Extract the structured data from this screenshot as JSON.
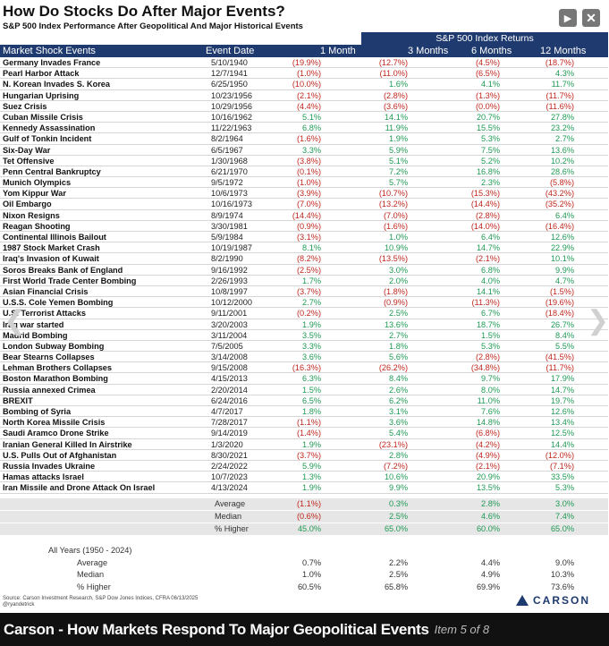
{
  "document": {
    "title": "How Do Stocks Do After Major Events?",
    "subtitle": "S&P 500 Index Performance After Geopolitical And Major Historical Events",
    "group_header": "S&P 500 Index Returns",
    "columns": {
      "event": "Market Shock Events",
      "date": "Event Date",
      "m1": "1 Month",
      "m3": "3 Months",
      "m6": "6 Months",
      "m12": "12 Months"
    },
    "rows": [
      {
        "event": "Germany Invades France",
        "date": "5/10/1940",
        "m1": "(19.9%)",
        "m3": "(12.7%)",
        "m6": "(4.5%)",
        "m12": "(18.7%)"
      },
      {
        "event": "Pearl Harbor Attack",
        "date": "12/7/1941",
        "m1": "(1.0%)",
        "m3": "(11.0%)",
        "m6": "(6.5%)",
        "m12": "4.3%"
      },
      {
        "event": "N. Korean Invades S. Korea",
        "date": "6/25/1950",
        "m1": "(10.0%)",
        "m3": "1.6%",
        "m6": "4.1%",
        "m12": "11.7%"
      },
      {
        "event": "Hungarian Uprising",
        "date": "10/23/1956",
        "m1": "(2.1%)",
        "m3": "(2.8%)",
        "m6": "(1.3%)",
        "m12": "(11.7%)"
      },
      {
        "event": "Suez Crisis",
        "date": "10/29/1956",
        "m1": "(4.4%)",
        "m3": "(3.6%)",
        "m6": "(0.0%)",
        "m12": "(11.6%)"
      },
      {
        "event": "Cuban Missile Crisis",
        "date": "10/16/1962",
        "m1": "5.1%",
        "m3": "14.1%",
        "m6": "20.7%",
        "m12": "27.8%"
      },
      {
        "event": "Kennedy Assassination",
        "date": "11/22/1963",
        "m1": "6.8%",
        "m3": "11.9%",
        "m6": "15.5%",
        "m12": "23.2%"
      },
      {
        "event": "Gulf of Tonkin Incident",
        "date": "8/2/1964",
        "m1": "(1.6%)",
        "m3": "1.9%",
        "m6": "5.3%",
        "m12": "2.7%"
      },
      {
        "event": "Six-Day War",
        "date": "6/5/1967",
        "m1": "3.3%",
        "m3": "5.9%",
        "m6": "7.5%",
        "m12": "13.6%"
      },
      {
        "event": "Tet Offensive",
        "date": "1/30/1968",
        "m1": "(3.8%)",
        "m3": "5.1%",
        "m6": "5.2%",
        "m12": "10.2%"
      },
      {
        "event": "Penn Central Bankruptcy",
        "date": "6/21/1970",
        "m1": "(0.1%)",
        "m3": "7.2%",
        "m6": "16.8%",
        "m12": "28.6%"
      },
      {
        "event": "Munich Olympics",
        "date": "9/5/1972",
        "m1": "(1.0%)",
        "m3": "5.7%",
        "m6": "2.3%",
        "m12": "(5.8%)"
      },
      {
        "event": "Yom Kippur War",
        "date": "10/6/1973",
        "m1": "(3.9%)",
        "m3": "(10.7%)",
        "m6": "(15.3%)",
        "m12": "(43.2%)"
      },
      {
        "event": "Oil Embargo",
        "date": "10/16/1973",
        "m1": "(7.0%)",
        "m3": "(13.2%)",
        "m6": "(14.4%)",
        "m12": "(35.2%)"
      },
      {
        "event": "Nixon Resigns",
        "date": "8/9/1974",
        "m1": "(14.4%)",
        "m3": "(7.0%)",
        "m6": "(2.8%)",
        "m12": "6.4%"
      },
      {
        "event": "Reagan Shooting",
        "date": "3/30/1981",
        "m1": "(0.9%)",
        "m3": "(1.6%)",
        "m6": "(14.0%)",
        "m12": "(16.4%)"
      },
      {
        "event": "Continental Illinois Bailout",
        "date": "5/9/1984",
        "m1": "(3.1%)",
        "m3": "1.0%",
        "m6": "6.4%",
        "m12": "12.6%"
      },
      {
        "event": "1987 Stock Market Crash",
        "date": "10/19/1987",
        "m1": "8.1%",
        "m3": "10.9%",
        "m6": "14.7%",
        "m12": "22.9%"
      },
      {
        "event": "Iraq's Invasion of Kuwait",
        "date": "8/2/1990",
        "m1": "(8.2%)",
        "m3": "(13.5%)",
        "m6": "(2.1%)",
        "m12": "10.1%"
      },
      {
        "event": "Soros Breaks Bank of England",
        "date": "9/16/1992",
        "m1": "(2.5%)",
        "m3": "3.0%",
        "m6": "6.8%",
        "m12": "9.9%"
      },
      {
        "event": "First World Trade Center Bombing",
        "date": "2/26/1993",
        "m1": "1.7%",
        "m3": "2.0%",
        "m6": "4.0%",
        "m12": "4.7%"
      },
      {
        "event": "Asian Financial Crisis",
        "date": "10/8/1997",
        "m1": "(3.7%)",
        "m3": "(1.8%)",
        "m6": "14.1%",
        "m12": "(1.5%)"
      },
      {
        "event": "U.S.S. Cole Yemen Bombing",
        "date": "10/12/2000",
        "m1": "2.7%",
        "m3": "(0.9%)",
        "m6": "(11.3%)",
        "m12": "(19.6%)"
      },
      {
        "event": "U.S. Terrorist Attacks",
        "date": "9/11/2001",
        "m1": "(0.2%)",
        "m3": "2.5%",
        "m6": "6.7%",
        "m12": "(18.4%)"
      },
      {
        "event": "Iraq war started",
        "date": "3/20/2003",
        "m1": "1.9%",
        "m3": "13.6%",
        "m6": "18.7%",
        "m12": "26.7%"
      },
      {
        "event": "Madrid Bombing",
        "date": "3/11/2004",
        "m1": "3.5%",
        "m3": "2.7%",
        "m6": "1.5%",
        "m12": "8.4%"
      },
      {
        "event": "London Subway Bombing",
        "date": "7/5/2005",
        "m1": "3.3%",
        "m3": "1.8%",
        "m6": "5.3%",
        "m12": "5.5%"
      },
      {
        "event": "Bear Stearns Collapses",
        "date": "3/14/2008",
        "m1": "3.6%",
        "m3": "5.6%",
        "m6": "(2.8%)",
        "m12": "(41.5%)"
      },
      {
        "event": "Lehman Brothers Collapses",
        "date": "9/15/2008",
        "m1": "(16.3%)",
        "m3": "(26.2%)",
        "m6": "(34.8%)",
        "m12": "(11.7%)"
      },
      {
        "event": "Boston Marathon Bombing",
        "date": "4/15/2013",
        "m1": "6.3%",
        "m3": "8.4%",
        "m6": "9.7%",
        "m12": "17.9%"
      },
      {
        "event": "Russia annexed Crimea",
        "date": "2/20/2014",
        "m1": "1.5%",
        "m3": "2.6%",
        "m6": "8.0%",
        "m12": "14.7%"
      },
      {
        "event": "BREXIT",
        "date": "6/24/2016",
        "m1": "6.5%",
        "m3": "6.2%",
        "m6": "11.0%",
        "m12": "19.7%"
      },
      {
        "event": "Bombing of Syria",
        "date": "4/7/2017",
        "m1": "1.8%",
        "m3": "3.1%",
        "m6": "7.6%",
        "m12": "12.6%"
      },
      {
        "event": "North Korea Missile Crisis",
        "date": "7/28/2017",
        "m1": "(1.1%)",
        "m3": "3.6%",
        "m6": "14.8%",
        "m12": "13.4%"
      },
      {
        "event": "Saudi Aramco Drone Strike",
        "date": "9/14/2019",
        "m1": "(1.4%)",
        "m3": "5.4%",
        "m6": "(6.8%)",
        "m12": "12.5%"
      },
      {
        "event": "Iranian General Killed In Airstrike",
        "date": "1/3/2020",
        "m1": "1.9%",
        "m3": "(23.1%)",
        "m6": "(4.2%)",
        "m12": "14.4%"
      },
      {
        "event": "U.S. Pulls Out of Afghanistan",
        "date": "8/30/2021",
        "m1": "(3.7%)",
        "m3": "2.8%",
        "m6": "(4.9%)",
        "m12": "(12.0%)"
      },
      {
        "event": "Russia Invades Ukraine",
        "date": "2/24/2022",
        "m1": "5.9%",
        "m3": "(7.2%)",
        "m6": "(2.1%)",
        "m12": "(7.1%)"
      },
      {
        "event": "Hamas attacks Israel",
        "date": "10/7/2023",
        "m1": "1.3%",
        "m3": "10.6%",
        "m6": "20.9%",
        "m12": "33.5%"
      },
      {
        "event": "Iran Missile and Drone Attack On Israel",
        "date": "4/13/2024",
        "m1": "1.9%",
        "m3": "9.9%",
        "m6": "13.5%",
        "m12": "5.3%"
      }
    ],
    "summary": [
      {
        "label": "Average",
        "m1": "(1.1%)",
        "m3": "0.3%",
        "m6": "2.8%",
        "m12": "3.0%"
      },
      {
        "label": "Median",
        "m1": "(0.6%)",
        "m3": "2.5%",
        "m6": "4.6%",
        "m12": "7.4%"
      },
      {
        "label": "% Higher",
        "m1": "45.0%",
        "m3": "65.0%",
        "m6": "60.0%",
        "m12": "65.0%"
      }
    ],
    "all_years": {
      "heading": "All Years (1950 - 2024)",
      "rows": [
        {
          "label": "Average",
          "m1": "0.7%",
          "m3": "2.2%",
          "m6": "4.4%",
          "m12": "9.0%"
        },
        {
          "label": "Median",
          "m1": "1.0%",
          "m3": "2.5%",
          "m6": "4.9%",
          "m12": "10.3%"
        },
        {
          "label": "% Higher",
          "m1": "60.5%",
          "m3": "65.8%",
          "m6": "69.9%",
          "m12": "73.6%"
        }
      ]
    },
    "source": "Source: Carson Investment Research, S&P Dow Jones Indices, CFRA 06/13/2025",
    "handle": "@ryandetrick",
    "logo_text": "CARSON"
  },
  "viewer": {
    "caption_title": "Carson - How Markets Respond To Major Geopolitical Events",
    "caption_count": "Item 5 of 8",
    "prev_glyph": "❮",
    "next_glyph": "❯",
    "play_glyph": "▶",
    "close_glyph": "✕"
  },
  "colors": {
    "header_bg": "#1f3a6e",
    "negative": "#c0271e",
    "positive": "#1f9a55"
  }
}
